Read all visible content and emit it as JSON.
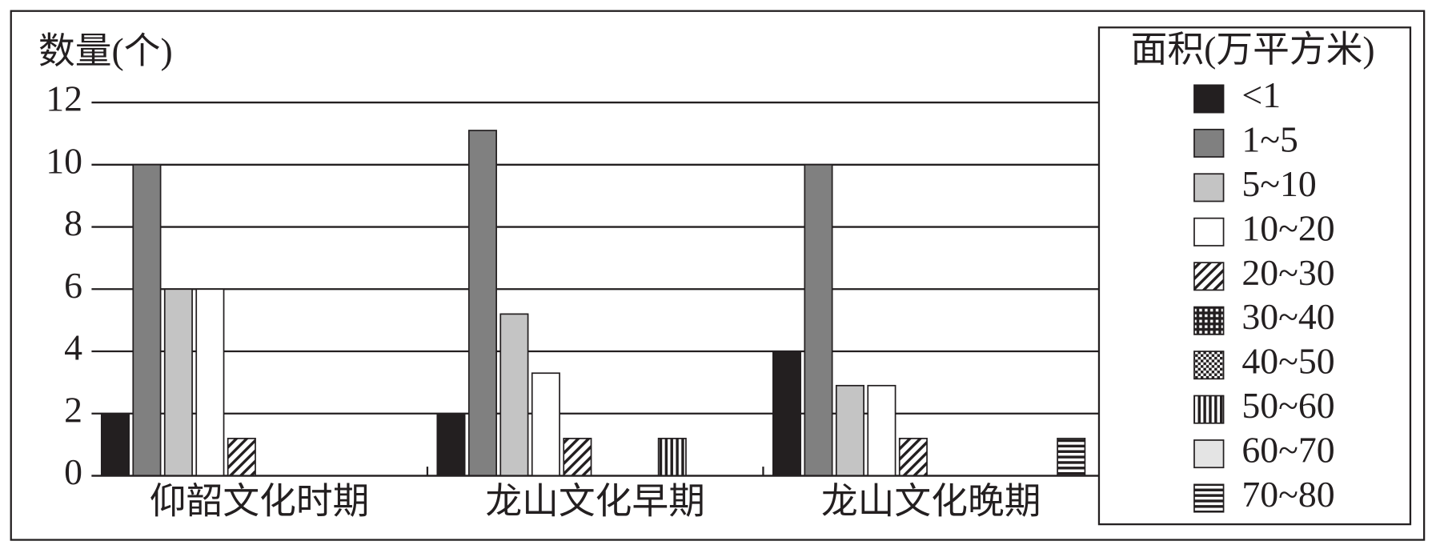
{
  "chart_data": {
    "type": "bar",
    "y_label": "数量(个)",
    "legend_title": "面积(万平方米)",
    "categories": [
      "仰韶文化时期",
      "龙山文化早期",
      "龙山文化晚期"
    ],
    "ylim": [
      0,
      12
    ],
    "yticks": [
      0,
      2,
      4,
      6,
      8,
      10,
      12
    ],
    "grid": true,
    "legend_position": "right",
    "series": [
      {
        "name": "<1",
        "color": "#231f20",
        "pattern": "solid",
        "values": [
          2,
          2,
          4
        ]
      },
      {
        "name": "1~5",
        "color": "#808080",
        "pattern": "solid",
        "values": [
          10,
          11.1,
          10
        ]
      },
      {
        "name": "5~10",
        "color": "#c4c4c4",
        "pattern": "solid",
        "values": [
          6,
          5.2,
          2.9
        ]
      },
      {
        "name": "10~20",
        "color": "#ffffff",
        "pattern": "solid",
        "values": [
          6,
          3.3,
          2.9
        ]
      },
      {
        "name": "20~30",
        "color": "#231f20",
        "pattern": "diagonal",
        "values": [
          1.2,
          1.2,
          1.2
        ]
      },
      {
        "name": "30~40",
        "color": "#231f20",
        "pattern": "grid",
        "values": [
          0,
          0,
          0
        ]
      },
      {
        "name": "40~50",
        "color": "#231f20",
        "pattern": "checker",
        "values": [
          0,
          0,
          0
        ]
      },
      {
        "name": "50~60",
        "color": "#231f20",
        "pattern": "vertical",
        "values": [
          0,
          1.2,
          0
        ]
      },
      {
        "name": "60~70",
        "color": "#e4e4e4",
        "pattern": "solid",
        "values": [
          0,
          0,
          0
        ]
      },
      {
        "name": "70~80",
        "color": "#231f20",
        "pattern": "horizontal",
        "values": [
          0,
          0,
          1.2
        ]
      }
    ]
  }
}
